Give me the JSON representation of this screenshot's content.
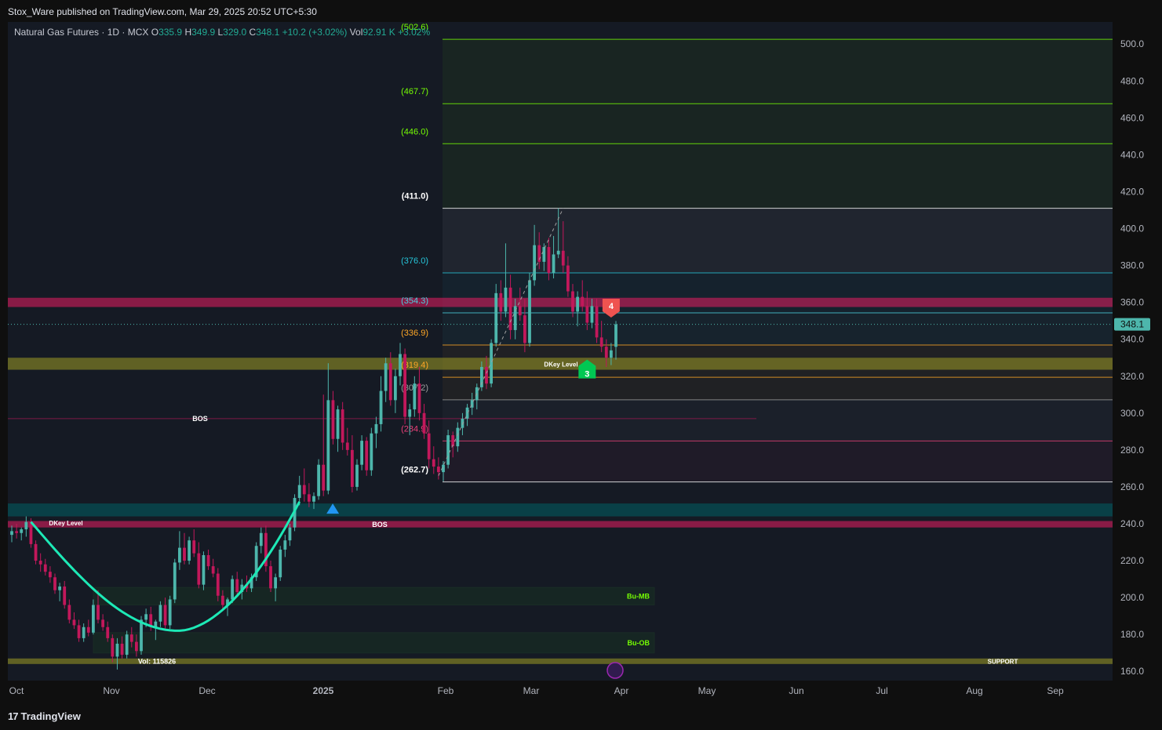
{
  "publisher": "Stox_Ware published on TradingView.com, Mar 29, 2025 20:52 UTC+5:30",
  "brand": "TradingView",
  "brand_logo": "17",
  "legend": {
    "symbol": "Natural Gas Futures · 1D · MCX",
    "open_label": "O",
    "open": "335.9",
    "high_label": "H",
    "high": "349.9",
    "low_label": "L",
    "low": "329.0",
    "close_label": "C",
    "close": "348.1",
    "change": "+10.2 (+3.02%)",
    "vol_label": "Vol",
    "vol": "92.91 K",
    "vol_change": "+3.02%"
  },
  "colors": {
    "bull": "#26a69a",
    "bear": "#ef5350",
    "bull_candle": "#4db6ac",
    "bear_candle": "#c2185b",
    "fib_green": "#76ff03",
    "fib_white": "#ffffff",
    "fib_cyan": "#26c6da",
    "fib_orange": "#ffa726",
    "fib_pink": "#ec407a",
    "curve": "#1de9b6"
  },
  "chart_data": {
    "type": "candlestick",
    "symbol": "Natural Gas Futures",
    "interval": "1D",
    "ylim": [
      155,
      512
    ],
    "y_ticks": [
      "500.0",
      "480.0",
      "460.0",
      "440.0",
      "420.0",
      "400.0",
      "380.0",
      "360.0",
      "340.0",
      "320.0",
      "300.0",
      "280.0",
      "260.0",
      "240.0",
      "220.0",
      "200.0",
      "180.0",
      "160.0"
    ],
    "x_ticks": [
      "Oct",
      "Nov",
      "Dec",
      "2025",
      "Feb",
      "Mar",
      "Apr",
      "May",
      "Jun",
      "Jul",
      "Aug",
      "Sep"
    ],
    "last_price": "348.1",
    "fib_levels": [
      {
        "label": "(502.6)",
        "value": 502.6,
        "color": "#76ff03"
      },
      {
        "label": "(467.7)",
        "value": 467.7,
        "color": "#76ff03"
      },
      {
        "label": "(446.0)",
        "value": 446.0,
        "color": "#76ff03"
      },
      {
        "label": "(411.0)",
        "value": 411.0,
        "color": "#ffffff"
      },
      {
        "label": "(376.0)",
        "value": 376.0,
        "color": "#26c6da"
      },
      {
        "label": "(354.3)",
        "value": 354.3,
        "color": "#4dd0e1"
      },
      {
        "label": "(336.9)",
        "value": 336.9,
        "color": "#ffa726"
      },
      {
        "label": "(319.4)",
        "value": 319.4,
        "color": "#ffa726"
      },
      {
        "label": "(307.2)",
        "value": 307.2,
        "color": "#9e9e9e"
      },
      {
        "label": "(284.9)",
        "value": 284.9,
        "color": "#ec407a"
      },
      {
        "label": "(262.7)",
        "value": 262.7,
        "color": "#ffffff"
      }
    ],
    "zones": [
      {
        "label": "",
        "top": 362.5,
        "bottom": 357.5,
        "color": "#e91e63"
      },
      {
        "label": "DKey Level",
        "top": 330.0,
        "bottom": 323.5,
        "color": "#9e9d24"
      },
      {
        "label": "",
        "top": 251.0,
        "bottom": 244.0,
        "color": "#006064"
      },
      {
        "label": "BOS",
        "top": 241.5,
        "bottom": 238.0,
        "color": "#e91e63"
      },
      {
        "label": "DKey Level",
        "top": 167.0,
        "bottom": 164.0,
        "color": "#9e9d24"
      }
    ],
    "boxes": [
      {
        "label": "Bu-MB",
        "top": 205.5,
        "bottom": 196.0
      },
      {
        "label": "Bu-OB",
        "top": 181.0,
        "bottom": 170.0
      }
    ],
    "annotations": {
      "bos_upper": "BOS",
      "bos_lower": "BOS",
      "dkey_upper": "DKey Level",
      "dkey_left": "DKey Level",
      "support": "SUPPORT",
      "vol_text": "Vol: 115826",
      "signal_sell": "4",
      "signal_buy": "3"
    },
    "candles": [
      {
        "o": 234,
        "h": 239,
        "l": 230,
        "c": 236
      },
      {
        "o": 236,
        "h": 240,
        "l": 232,
        "c": 235
      },
      {
        "o": 235,
        "h": 238,
        "l": 231,
        "c": 237
      },
      {
        "o": 237,
        "h": 244,
        "l": 233,
        "c": 241
      },
      {
        "o": 241,
        "h": 243,
        "l": 227,
        "c": 229
      },
      {
        "o": 229,
        "h": 231,
        "l": 218,
        "c": 220
      },
      {
        "o": 220,
        "h": 224,
        "l": 214,
        "c": 218
      },
      {
        "o": 218,
        "h": 221,
        "l": 212,
        "c": 214
      },
      {
        "o": 214,
        "h": 217,
        "l": 208,
        "c": 211
      },
      {
        "o": 211,
        "h": 213,
        "l": 202,
        "c": 204
      },
      {
        "o": 204,
        "h": 208,
        "l": 198,
        "c": 206
      },
      {
        "o": 206,
        "h": 209,
        "l": 194,
        "c": 196
      },
      {
        "o": 196,
        "h": 199,
        "l": 186,
        "c": 188
      },
      {
        "o": 188,
        "h": 192,
        "l": 183,
        "c": 185
      },
      {
        "o": 185,
        "h": 188,
        "l": 176,
        "c": 178
      },
      {
        "o": 178,
        "h": 186,
        "l": 176,
        "c": 184
      },
      {
        "o": 184,
        "h": 188,
        "l": 179,
        "c": 181
      },
      {
        "o": 181,
        "h": 199,
        "l": 180,
        "c": 196
      },
      {
        "o": 196,
        "h": 204,
        "l": 186,
        "c": 188
      },
      {
        "o": 188,
        "h": 191,
        "l": 182,
        "c": 184
      },
      {
        "o": 184,
        "h": 187,
        "l": 176,
        "c": 178
      },
      {
        "o": 178,
        "h": 180,
        "l": 165,
        "c": 168
      },
      {
        "o": 168,
        "h": 178,
        "l": 161,
        "c": 175
      },
      {
        "o": 175,
        "h": 179,
        "l": 167,
        "c": 169
      },
      {
        "o": 169,
        "h": 182,
        "l": 167,
        "c": 180
      },
      {
        "o": 180,
        "h": 184,
        "l": 173,
        "c": 176
      },
      {
        "o": 176,
        "h": 180,
        "l": 168,
        "c": 171
      },
      {
        "o": 171,
        "h": 190,
        "l": 169,
        "c": 188
      },
      {
        "o": 188,
        "h": 194,
        "l": 184,
        "c": 191
      },
      {
        "o": 191,
        "h": 195,
        "l": 182,
        "c": 184
      },
      {
        "o": 184,
        "h": 188,
        "l": 177,
        "c": 187
      },
      {
        "o": 187,
        "h": 198,
        "l": 184,
        "c": 196
      },
      {
        "o": 196,
        "h": 200,
        "l": 182,
        "c": 185
      },
      {
        "o": 185,
        "h": 201,
        "l": 183,
        "c": 199
      },
      {
        "o": 199,
        "h": 221,
        "l": 197,
        "c": 219
      },
      {
        "o": 219,
        "h": 236,
        "l": 215,
        "c": 227
      },
      {
        "o": 227,
        "h": 235,
        "l": 218,
        "c": 220
      },
      {
        "o": 220,
        "h": 233,
        "l": 218,
        "c": 231
      },
      {
        "o": 231,
        "h": 237,
        "l": 222,
        "c": 224
      },
      {
        "o": 224,
        "h": 230,
        "l": 205,
        "c": 207
      },
      {
        "o": 207,
        "h": 225,
        "l": 204,
        "c": 223
      },
      {
        "o": 223,
        "h": 226,
        "l": 215,
        "c": 217
      },
      {
        "o": 217,
        "h": 221,
        "l": 211,
        "c": 213
      },
      {
        "o": 213,
        "h": 216,
        "l": 198,
        "c": 201
      },
      {
        "o": 201,
        "h": 204,
        "l": 194,
        "c": 196
      },
      {
        "o": 196,
        "h": 200,
        "l": 190,
        "c": 199
      },
      {
        "o": 199,
        "h": 212,
        "l": 197,
        "c": 210
      },
      {
        "o": 210,
        "h": 214,
        "l": 201,
        "c": 203
      },
      {
        "o": 203,
        "h": 210,
        "l": 199,
        "c": 207
      },
      {
        "o": 207,
        "h": 212,
        "l": 203,
        "c": 205
      },
      {
        "o": 205,
        "h": 213,
        "l": 203,
        "c": 211
      },
      {
        "o": 211,
        "h": 230,
        "l": 209,
        "c": 228
      },
      {
        "o": 228,
        "h": 238,
        "l": 224,
        "c": 235
      },
      {
        "o": 235,
        "h": 239,
        "l": 214,
        "c": 217
      },
      {
        "o": 217,
        "h": 220,
        "l": 203,
        "c": 205
      },
      {
        "o": 205,
        "h": 213,
        "l": 198,
        "c": 211
      },
      {
        "o": 211,
        "h": 228,
        "l": 209,
        "c": 226
      },
      {
        "o": 226,
        "h": 234,
        "l": 222,
        "c": 231
      },
      {
        "o": 231,
        "h": 240,
        "l": 228,
        "c": 238
      },
      {
        "o": 238,
        "h": 256,
        "l": 236,
        "c": 254
      },
      {
        "o": 254,
        "h": 266,
        "l": 250,
        "c": 261
      },
      {
        "o": 261,
        "h": 270,
        "l": 252,
        "c": 256
      },
      {
        "o": 256,
        "h": 262,
        "l": 249,
        "c": 252
      },
      {
        "o": 252,
        "h": 257,
        "l": 248,
        "c": 255
      },
      {
        "o": 255,
        "h": 275,
        "l": 253,
        "c": 272
      },
      {
        "o": 272,
        "h": 310,
        "l": 255,
        "c": 258
      },
      {
        "o": 258,
        "h": 327,
        "l": 256,
        "c": 307
      },
      {
        "o": 307,
        "h": 312,
        "l": 283,
        "c": 286
      },
      {
        "o": 286,
        "h": 304,
        "l": 279,
        "c": 302
      },
      {
        "o": 302,
        "h": 306,
        "l": 280,
        "c": 284
      },
      {
        "o": 284,
        "h": 292,
        "l": 277,
        "c": 280
      },
      {
        "o": 280,
        "h": 288,
        "l": 257,
        "c": 260
      },
      {
        "o": 260,
        "h": 275,
        "l": 258,
        "c": 272
      },
      {
        "o": 272,
        "h": 288,
        "l": 269,
        "c": 285
      },
      {
        "o": 285,
        "h": 287,
        "l": 266,
        "c": 269
      },
      {
        "o": 269,
        "h": 292,
        "l": 266,
        "c": 289
      },
      {
        "o": 289,
        "h": 298,
        "l": 281,
        "c": 294
      },
      {
        "o": 294,
        "h": 320,
        "l": 290,
        "c": 312
      },
      {
        "o": 312,
        "h": 330,
        "l": 306,
        "c": 327
      },
      {
        "o": 327,
        "h": 333,
        "l": 304,
        "c": 307
      },
      {
        "o": 307,
        "h": 324,
        "l": 300,
        "c": 320
      },
      {
        "o": 320,
        "h": 338,
        "l": 315,
        "c": 332
      },
      {
        "o": 332,
        "h": 335,
        "l": 294,
        "c": 298
      },
      {
        "o": 298,
        "h": 305,
        "l": 288,
        "c": 302
      },
      {
        "o": 302,
        "h": 320,
        "l": 298,
        "c": 316
      },
      {
        "o": 316,
        "h": 325,
        "l": 296,
        "c": 300
      },
      {
        "o": 300,
        "h": 305,
        "l": 286,
        "c": 289
      },
      {
        "o": 289,
        "h": 296,
        "l": 270,
        "c": 275
      },
      {
        "o": 275,
        "h": 282,
        "l": 267,
        "c": 271
      },
      {
        "o": 271,
        "h": 276,
        "l": 264,
        "c": 268
      },
      {
        "o": 268,
        "h": 274,
        "l": 263,
        "c": 272
      },
      {
        "o": 272,
        "h": 291,
        "l": 270,
        "c": 288
      },
      {
        "o": 288,
        "h": 290,
        "l": 276,
        "c": 282
      },
      {
        "o": 282,
        "h": 295,
        "l": 279,
        "c": 292
      },
      {
        "o": 292,
        "h": 300,
        "l": 288,
        "c": 297
      },
      {
        "o": 297,
        "h": 305,
        "l": 293,
        "c": 303
      },
      {
        "o": 303,
        "h": 311,
        "l": 299,
        "c": 307
      },
      {
        "o": 307,
        "h": 316,
        "l": 302,
        "c": 314
      },
      {
        "o": 314,
        "h": 328,
        "l": 312,
        "c": 325
      },
      {
        "o": 325,
        "h": 331,
        "l": 313,
        "c": 316
      },
      {
        "o": 316,
        "h": 340,
        "l": 314,
        "c": 338
      },
      {
        "o": 338,
        "h": 370,
        "l": 336,
        "c": 365
      },
      {
        "o": 365,
        "h": 372,
        "l": 350,
        "c": 355
      },
      {
        "o": 355,
        "h": 392,
        "l": 352,
        "c": 368
      },
      {
        "o": 368,
        "h": 375,
        "l": 340,
        "c": 345
      },
      {
        "o": 345,
        "h": 362,
        "l": 340,
        "c": 358
      },
      {
        "o": 358,
        "h": 368,
        "l": 350,
        "c": 353
      },
      {
        "o": 353,
        "h": 362,
        "l": 333,
        "c": 338
      },
      {
        "o": 338,
        "h": 376,
        "l": 336,
        "c": 372
      },
      {
        "o": 372,
        "h": 402,
        "l": 369,
        "c": 391
      },
      {
        "o": 391,
        "h": 398,
        "l": 378,
        "c": 382
      },
      {
        "o": 382,
        "h": 392,
        "l": 377,
        "c": 390
      },
      {
        "o": 390,
        "h": 395,
        "l": 372,
        "c": 376
      },
      {
        "o": 376,
        "h": 396,
        "l": 373,
        "c": 386
      },
      {
        "o": 386,
        "h": 411,
        "l": 384,
        "c": 388
      },
      {
        "o": 388,
        "h": 404,
        "l": 376,
        "c": 380
      },
      {
        "o": 380,
        "h": 385,
        "l": 363,
        "c": 366
      },
      {
        "o": 366,
        "h": 370,
        "l": 352,
        "c": 355
      },
      {
        "o": 355,
        "h": 366,
        "l": 347,
        "c": 363
      },
      {
        "o": 363,
        "h": 372,
        "l": 355,
        "c": 358
      },
      {
        "o": 358,
        "h": 366,
        "l": 345,
        "c": 349
      },
      {
        "o": 349,
        "h": 362,
        "l": 346,
        "c": 358
      },
      {
        "o": 358,
        "h": 362,
        "l": 338,
        "c": 341
      },
      {
        "o": 341,
        "h": 350,
        "l": 333,
        "c": 336
      },
      {
        "o": 336,
        "h": 340,
        "l": 325,
        "c": 330
      },
      {
        "o": 330,
        "h": 338,
        "l": 326,
        "c": 334
      },
      {
        "o": 335.9,
        "h": 349.9,
        "l": 329,
        "c": 348.1
      }
    ]
  }
}
